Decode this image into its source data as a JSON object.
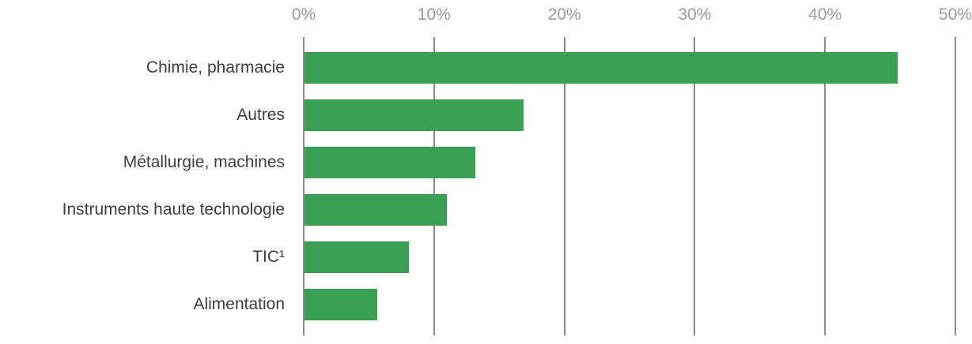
{
  "chart_data": {
    "type": "bar",
    "orientation": "horizontal",
    "categories": [
      "Chimie, pharmacie",
      "Autres",
      "Métallurgie, machines",
      "Instruments haute technologie",
      "TIC¹",
      "Alimentation"
    ],
    "values": [
      45.5,
      16.8,
      13.1,
      10.9,
      8.0,
      5.6
    ],
    "unit": "%",
    "xlim": [
      0,
      50
    ],
    "x_ticks": [
      "0%",
      "10%",
      "20%",
      "30%",
      "40%",
      "50%"
    ],
    "x_tick_values": [
      0,
      10,
      20,
      30,
      40,
      50
    ],
    "x_axis_position": "top",
    "grid": true,
    "legend": false,
    "bar_color": "#3aa052",
    "gridline_color": "#8a8a8a",
    "tick_label_color": "#9a9a9a",
    "category_label_color": "#3e3e3e",
    "background_color": "#ffffff"
  }
}
